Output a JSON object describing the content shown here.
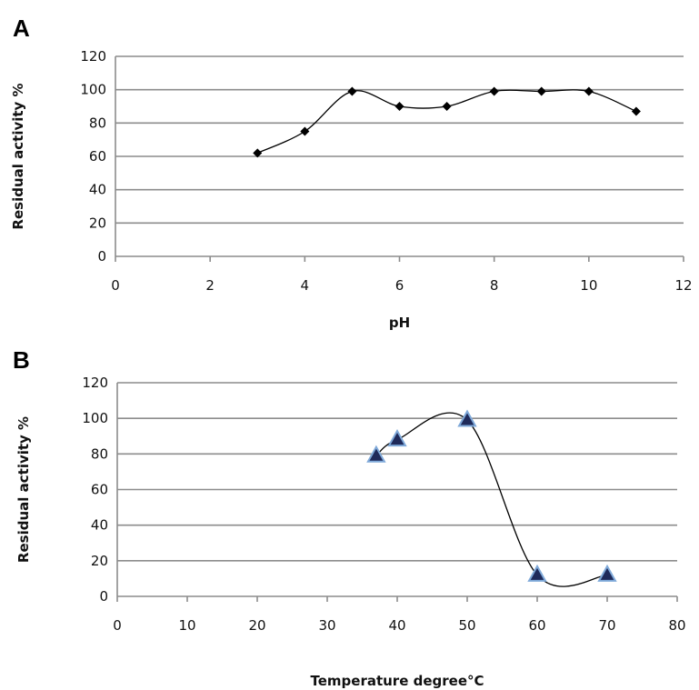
{
  "chart_data": [
    {
      "panel": "A",
      "type": "line",
      "xlabel": "pH",
      "ylabel": "Residual activity %",
      "xlim": [
        0,
        12
      ],
      "ylim": [
        0,
        120
      ],
      "xticks": [
        0,
        2,
        4,
        6,
        8,
        10,
        12
      ],
      "yticks": [
        0,
        20,
        40,
        60,
        80,
        100,
        120
      ],
      "grid": "horizontal",
      "marker": "diamond",
      "smooth": true,
      "series": [
        {
          "x": [
            3,
            4,
            5,
            6,
            7,
            8,
            9,
            10,
            11
          ],
          "y": [
            62,
            75,
            99,
            90,
            90,
            99,
            99,
            99,
            87
          ]
        }
      ]
    },
    {
      "panel": "B",
      "type": "line",
      "xlabel": "Temperature degree°C",
      "ylabel": "Residual activity %",
      "xlim": [
        0,
        80
      ],
      "ylim": [
        0,
        120
      ],
      "xticks": [
        0,
        10,
        20,
        30,
        40,
        50,
        60,
        70,
        80
      ],
      "yticks": [
        0,
        20,
        40,
        60,
        80,
        100,
        120
      ],
      "grid": "horizontal",
      "marker": "triangle",
      "marker_color": "#1f2a5a",
      "marker_edge_color": "#7fa9d9",
      "smooth": true,
      "series": [
        {
          "x": [
            37,
            40,
            50,
            60,
            70
          ],
          "y": [
            79,
            88,
            99,
            12,
            12
          ]
        }
      ]
    }
  ]
}
